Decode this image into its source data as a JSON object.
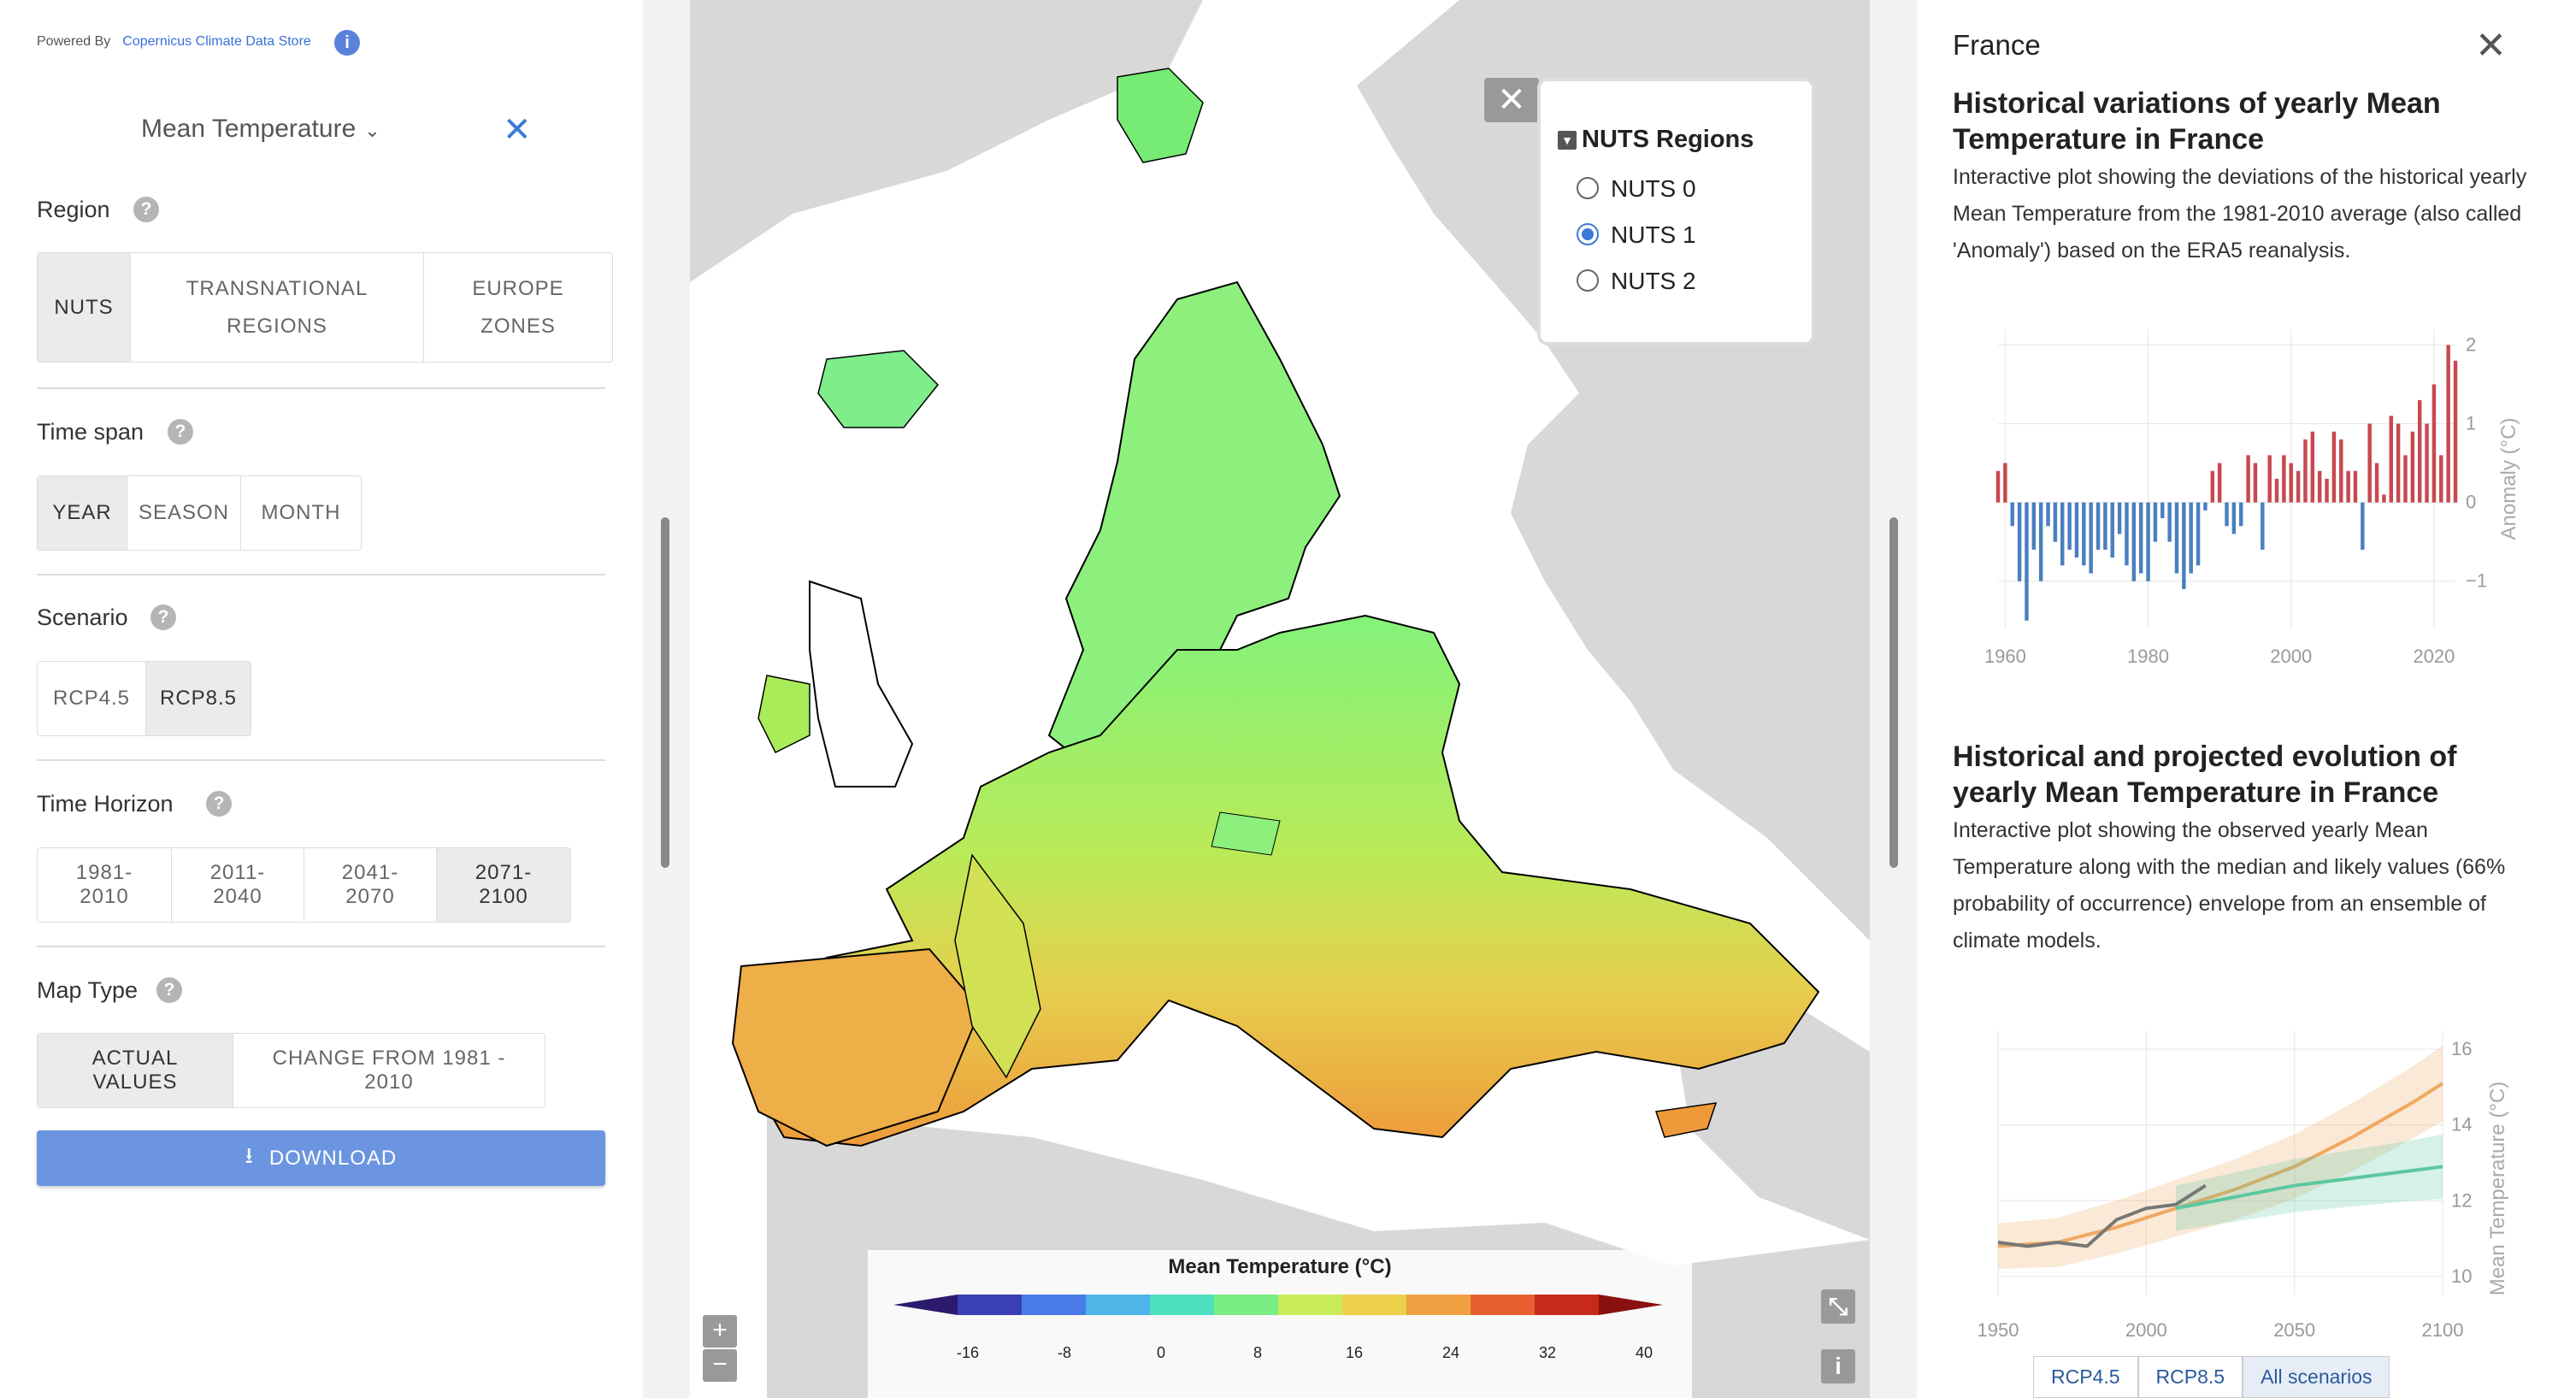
{
  "header": {
    "powered_by": "Powered By",
    "powered_link": "Copernicus Climate Data Store",
    "info_icon": "i"
  },
  "variable": {
    "label": "Mean Temperature",
    "chevron": "⌄",
    "close": "✕"
  },
  "region": {
    "label": "Region",
    "options": [
      "NUTS",
      "TRANSNATIONAL REGIONS",
      "EUROPE ZONES"
    ],
    "selected": "NUTS"
  },
  "time_span": {
    "label": "Time span",
    "options": [
      "YEAR",
      "SEASON",
      "MONTH"
    ],
    "selected": "YEAR"
  },
  "scenario": {
    "label": "Scenario",
    "options": [
      "RCP4.5",
      "RCP8.5"
    ],
    "selected": "RCP8.5"
  },
  "time_horizon": {
    "label": "Time Horizon",
    "options": [
      "1981-2010",
      "2011-2040",
      "2041-2070",
      "2071-2100"
    ],
    "selected": "2071-2100"
  },
  "map_type": {
    "label": "Map Type",
    "options": [
      "ACTUAL VALUES",
      "CHANGE FROM 1981 - 2010"
    ],
    "selected": "ACTUAL VALUES"
  },
  "download": {
    "label": "DOWNLOAD",
    "icon": "download-icon"
  },
  "map": {
    "nuts_panel": {
      "title": "NUTS Regions",
      "options": [
        "NUTS 0",
        "NUTS 1",
        "NUTS 2"
      ],
      "selected": "NUTS 1"
    },
    "zoom_in": "+",
    "zoom_out": "−",
    "info": "i",
    "fullscreen": "⤡",
    "legend": {
      "title": "Mean Temperature (°C)",
      "ticks": [
        "-16",
        "-8",
        "0",
        "8",
        "16",
        "24",
        "32",
        "40"
      ],
      "colors": [
        "#2b1a6e",
        "#3a3fb5",
        "#4a7be8",
        "#4db5e8",
        "#4de0c0",
        "#7aec84",
        "#c8ec5a",
        "#ecd04a",
        "#f0a040",
        "#e86030",
        "#c62a1a",
        "#8a1010"
      ]
    }
  },
  "right": {
    "title": "France",
    "close": "✕",
    "chart1_title": "Historical variations of yearly Mean Temperature in France",
    "chart1_desc": "Interactive plot showing the deviations of the historical yearly Mean Temperature from the 1981-2010 average (also called 'Anomaly') based on the ERA5 reanalysis.",
    "chart2_title": "Historical and projected evolution of yearly Mean Temperature in France",
    "chart2_desc": "Interactive plot showing the observed yearly Mean Temperature along with the median and likely values (66% probability of occurrence) envelope from an ensemble of climate models.",
    "scenario_tabs": [
      "RCP4.5",
      "RCP8.5",
      "All scenarios"
    ],
    "scenario_tab_selected": "All scenarios"
  },
  "chart_data": [
    {
      "type": "bar",
      "ylabel": "Anomaly (°C)",
      "xlabel": "",
      "x_ticks": [
        "1960",
        "1980",
        "2000",
        "2020"
      ],
      "y_ticks": [
        "2",
        "1",
        "0",
        "−1"
      ],
      "ylim": [
        -1.6,
        2.2
      ],
      "xlim": [
        1959,
        2023
      ],
      "years": [
        1959,
        1960,
        1961,
        1962,
        1963,
        1964,
        1965,
        1966,
        1967,
        1968,
        1969,
        1970,
        1971,
        1972,
        1973,
        1974,
        1975,
        1976,
        1977,
        1978,
        1979,
        1980,
        1981,
        1982,
        1983,
        1984,
        1985,
        1986,
        1987,
        1988,
        1989,
        1990,
        1991,
        1992,
        1993,
        1994,
        1995,
        1996,
        1997,
        1998,
        1999,
        2000,
        2001,
        2002,
        2003,
        2004,
        2005,
        2006,
        2007,
        2008,
        2009,
        2010,
        2011,
        2012,
        2013,
        2014,
        2015,
        2016,
        2017,
        2018,
        2019,
        2020,
        2021,
        2022,
        2023
      ],
      "values": [
        0.4,
        0.5,
        -0.3,
        -1.0,
        -1.5,
        -0.6,
        -1.0,
        -0.3,
        -0.5,
        -0.8,
        -0.6,
        -0.7,
        -0.8,
        -0.9,
        -0.6,
        -0.6,
        -0.7,
        -0.4,
        -0.8,
        -1.0,
        -0.9,
        -1.0,
        -0.5,
        -0.2,
        -0.5,
        -0.9,
        -1.1,
        -0.9,
        -0.8,
        -0.1,
        0.4,
        0.5,
        -0.3,
        -0.4,
        -0.3,
        0.6,
        0.5,
        -0.6,
        0.6,
        0.3,
        0.6,
        0.5,
        0.4,
        0.8,
        0.9,
        0.4,
        0.3,
        0.9,
        0.8,
        0.4,
        0.4,
        -0.6,
        1.0,
        0.5,
        0.1,
        1.1,
        1.0,
        0.6,
        0.9,
        1.3,
        1.0,
        1.5,
        0.6,
        2.0,
        1.8
      ],
      "positive_color": "#c8484f",
      "negative_color": "#4a7fbf"
    },
    {
      "type": "line",
      "ylabel": "Mean Temperature (°C)",
      "xlabel": "",
      "x_ticks": [
        "1950",
        "2000",
        "2050",
        "2100"
      ],
      "y_ticks": [
        "16",
        "14",
        "12",
        "10"
      ],
      "xlim": [
        1950,
        2100
      ],
      "ylim": [
        9.5,
        16.5
      ],
      "series": [
        {
          "name": "RCP8.5",
          "color": "#f0a860",
          "x": [
            1950,
            1970,
            1990,
            2010,
            2030,
            2050,
            2070,
            2090,
            2100
          ],
          "values": [
            10.8,
            10.9,
            11.3,
            11.8,
            12.3,
            12.9,
            13.7,
            14.6,
            15.1
          ]
        },
        {
          "name": "RCP4.5",
          "color": "#5cc8a0",
          "x": [
            2010,
            2030,
            2050,
            2070,
            2090,
            2100
          ],
          "values": [
            11.8,
            12.1,
            12.4,
            12.6,
            12.8,
            12.9
          ]
        },
        {
          "name": "Observed",
          "color": "#777777",
          "x": [
            1950,
            1960,
            1970,
            1980,
            1990,
            2000,
            2010,
            2020
          ],
          "values": [
            10.9,
            10.8,
            10.9,
            10.8,
            11.5,
            11.8,
            11.9,
            12.4
          ]
        }
      ]
    }
  ]
}
